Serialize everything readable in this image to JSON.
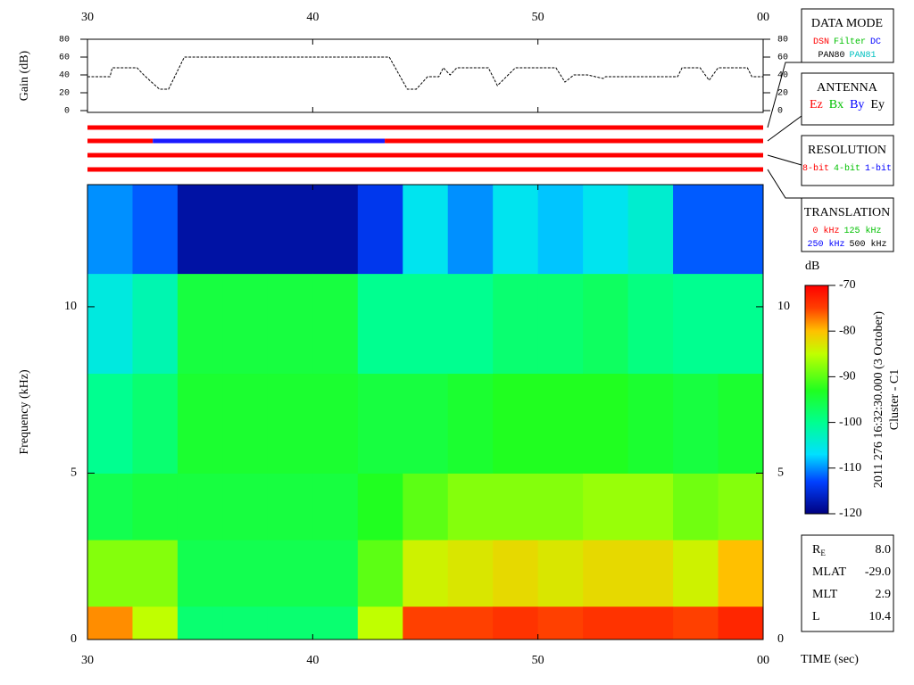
{
  "chart_data": [
    {
      "type": "line",
      "y_label": "Gain (dB)",
      "color": "#000000",
      "x": [
        30,
        31,
        31.1,
        32.2,
        32.5,
        32.8,
        33.2,
        33.6,
        34.3,
        43.4,
        44.2,
        44.6,
        45.1,
        45.6,
        45.8,
        46.1,
        46.4,
        47.8,
        48.2,
        48.6,
        49.0,
        50.8,
        51.2,
        51.6,
        52.2,
        52.9,
        53.0,
        56.2,
        56.4,
        57.2,
        57.6,
        58.0,
        59.3,
        59.5,
        60
      ],
      "values": [
        38,
        38,
        48,
        48,
        40,
        33,
        24,
        24,
        60,
        60,
        24,
        24,
        38,
        38,
        48,
        40,
        48,
        48,
        28,
        38,
        48,
        48,
        32,
        40,
        40,
        36,
        38,
        38,
        48,
        48,
        34,
        48,
        48,
        38,
        38
      ],
      "xlim": [
        30,
        60
      ],
      "xticks": [
        30,
        40,
        50,
        {
          "value": 60,
          "label": "00"
        }
      ],
      "ylim": [
        0,
        80
      ],
      "yticks": [
        0,
        20,
        40,
        60,
        80
      ]
    },
    {
      "type": "timeline",
      "xlim": [
        30,
        60
      ],
      "tracks": [
        [
          {
            "start": 30,
            "end": 60,
            "color": "#ff0000"
          }
        ],
        [
          {
            "start": 30,
            "end": 32.9,
            "color": "#ff0000"
          },
          {
            "start": 32.9,
            "end": 43.2,
            "color": "#1a1aff"
          },
          {
            "start": 43.2,
            "end": 60,
            "color": "#ff0000"
          }
        ],
        [
          {
            "start": 30,
            "end": 60,
            "color": "#ff0000"
          }
        ],
        [
          {
            "start": 30,
            "end": 60,
            "color": "#ff0000"
          }
        ]
      ]
    },
    {
      "type": "heatmap",
      "y_label": "Frequency (kHz)",
      "x_label": "TIME (sec)",
      "xlim": [
        30,
        60
      ],
      "xticks": [
        30,
        40,
        50,
        {
          "value": 60,
          "label": "00"
        }
      ],
      "ylim": [
        0,
        13.67
      ],
      "yticks": [
        0,
        5,
        10
      ],
      "x_bins": [
        30,
        32,
        34,
        36,
        38,
        40,
        42,
        44,
        46,
        48,
        50,
        52,
        54,
        56,
        58,
        60
      ],
      "y_bins": [
        0,
        1,
        3,
        5,
        8,
        11,
        13.67
      ],
      "values": [
        [
          -78,
          -88,
          -96,
          -100,
          -105,
          -110
        ],
        [
          -85,
          -88,
          -95,
          -98,
          -102,
          -112
        ],
        [
          -98,
          -96,
          -95,
          -94,
          -95,
          -118
        ],
        [
          -98,
          -96,
          -95,
          -94,
          -95,
          -118
        ],
        [
          -98,
          -96,
          -95,
          -94,
          -95,
          -118
        ],
        [
          -98,
          -96,
          -95,
          -94,
          -95,
          -118
        ],
        [
          -85,
          -90,
          -93,
          -95,
          -100,
          -114
        ],
        [
          -75,
          -84,
          -90,
          -95,
          -100,
          -106
        ],
        [
          -75,
          -83,
          -88,
          -94,
          -100,
          -110
        ],
        [
          -74,
          -82,
          -88,
          -93,
          -98,
          -106
        ],
        [
          -75,
          -83,
          -88,
          -93,
          -98,
          -108
        ],
        [
          -74,
          -82,
          -87,
          -93,
          -97,
          -106
        ],
        [
          -74,
          -82,
          -87,
          -94,
          -99,
          -104
        ],
        [
          -75,
          -84,
          -89,
          -95,
          -100,
          -112
        ],
        [
          -73,
          -80,
          -88,
          -94,
          -100,
          -112
        ]
      ],
      "colorbar": {
        "label": "dB",
        "lim": [
          -120,
          -70
        ],
        "ticks": [
          -120,
          -110,
          -100,
          -90,
          -80,
          -70
        ]
      },
      "caption": [
        "2011 276 16:32:30.000 (3 October)",
        "Cluster - C1"
      ]
    }
  ],
  "panels": [
    {
      "title": "DATA MODE",
      "rows": [
        [
          {
            "text": "DSN",
            "color": "#ff0000"
          },
          {
            "text": "Filter",
            "color": "#00c000"
          },
          {
            "text": "DC",
            "color": "#0000ff"
          }
        ],
        [
          {
            "text": "PAN80",
            "color": "#000000"
          },
          {
            "text": "PAN81",
            "color": "#00c0c0"
          }
        ]
      ]
    },
    {
      "title": "ANTENNA",
      "rows": [
        [
          {
            "text": "Ez",
            "color": "#ff0000"
          },
          {
            "text": "Bx",
            "color": "#00c000"
          },
          {
            "text": "By",
            "color": "#0000ff"
          },
          {
            "text": "Ey",
            "color": "#000000"
          }
        ]
      ]
    },
    {
      "title": "RESOLUTION",
      "rows": [
        [
          {
            "text": "8-bit",
            "color": "#ff0000"
          },
          {
            "text": "4-bit",
            "color": "#00c000"
          },
          {
            "text": "1-bit",
            "color": "#0000ff"
          }
        ]
      ]
    },
    {
      "title": "TRANSLATION",
      "rows": [
        [
          {
            "text": "0 kHz",
            "color": "#ff0000"
          },
          {
            "text": "125 kHz",
            "color": "#00c000"
          }
        ],
        [
          {
            "text": "250 kHz",
            "color": "#0000ff"
          },
          {
            "text": "500 kHz",
            "color": "#000000"
          }
        ]
      ]
    }
  ],
  "ephemeris": [
    {
      "label": "R",
      "sub": "E",
      "value": "8.0"
    },
    {
      "label": "MLAT",
      "value": "-29.0"
    },
    {
      "label": "MLT",
      "value": "2.9"
    },
    {
      "label": "L",
      "value": "10.4"
    }
  ]
}
